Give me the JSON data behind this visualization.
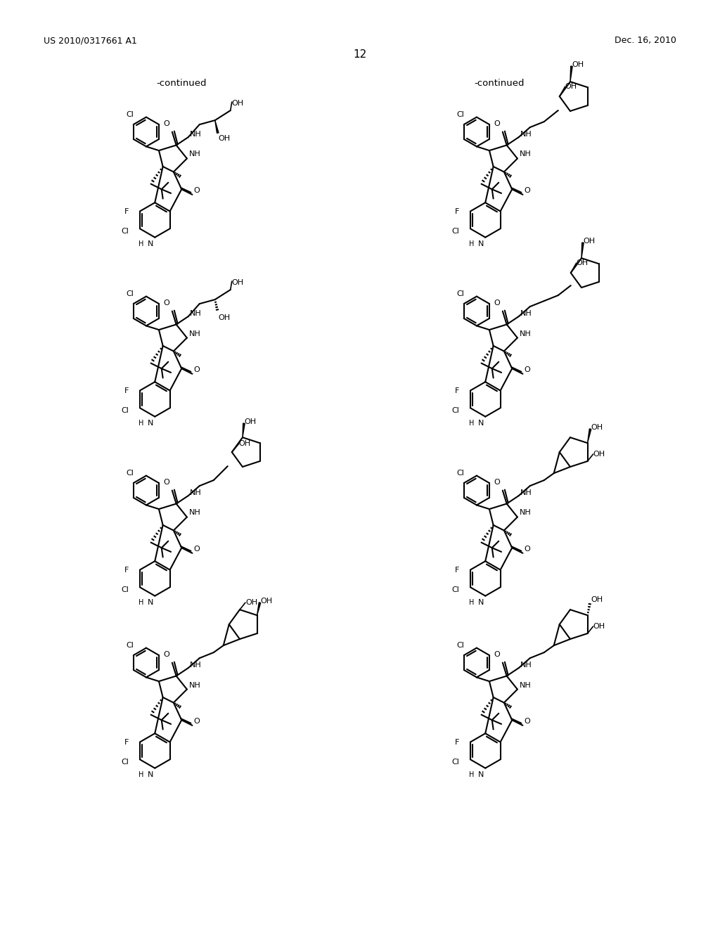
{
  "background_color": "#ffffff",
  "header_left": "US 2010/0317661 A1",
  "header_right": "Dec. 16, 2010",
  "page_number": "12",
  "continued_left": "-continued",
  "continued_right": "-continued"
}
